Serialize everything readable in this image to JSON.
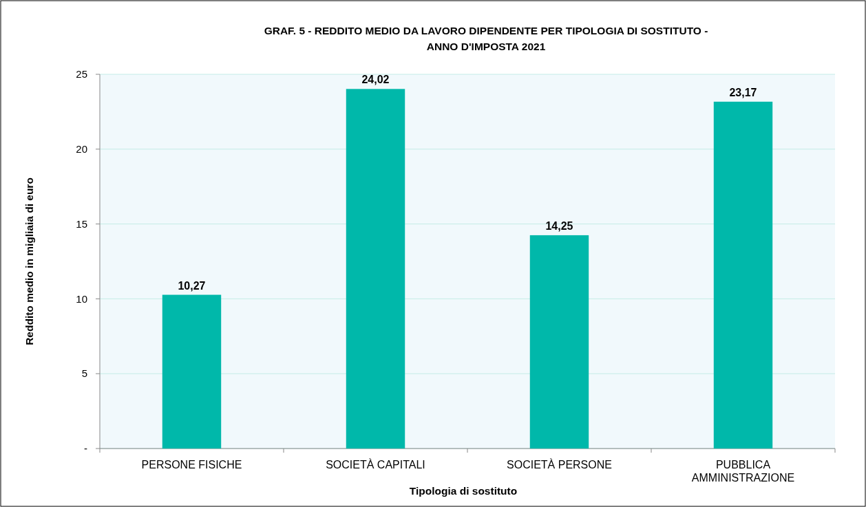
{
  "chart_data": {
    "type": "bar",
    "title": "GRAF. 5 - REDDITO MEDIO DA LAVORO DIPENDENTE PER TIPOLOGIA DI SOSTITUTO - ANNO D'IMPOSTA 2021",
    "xlabel": "Tipologia di sostituto",
    "ylabel": "Reddito medio in migliaia di euro",
    "categories": [
      "PERSONE FISICHE",
      "SOCIETÀ CAPITALI",
      "SOCIETÀ PERSONE",
      "PUBBLICA AMMINISTRAZIONE"
    ],
    "values": [
      10.27,
      24.02,
      14.25,
      23.17
    ],
    "value_labels": [
      "10,27",
      "24,02",
      "14,25",
      "23,17"
    ],
    "color": "#00b8aa",
    "ylim": [
      0,
      25
    ],
    "yticks": [
      {
        "value": 0,
        "label": "-"
      },
      5,
      10,
      15,
      20,
      25
    ],
    "grid": "y"
  }
}
